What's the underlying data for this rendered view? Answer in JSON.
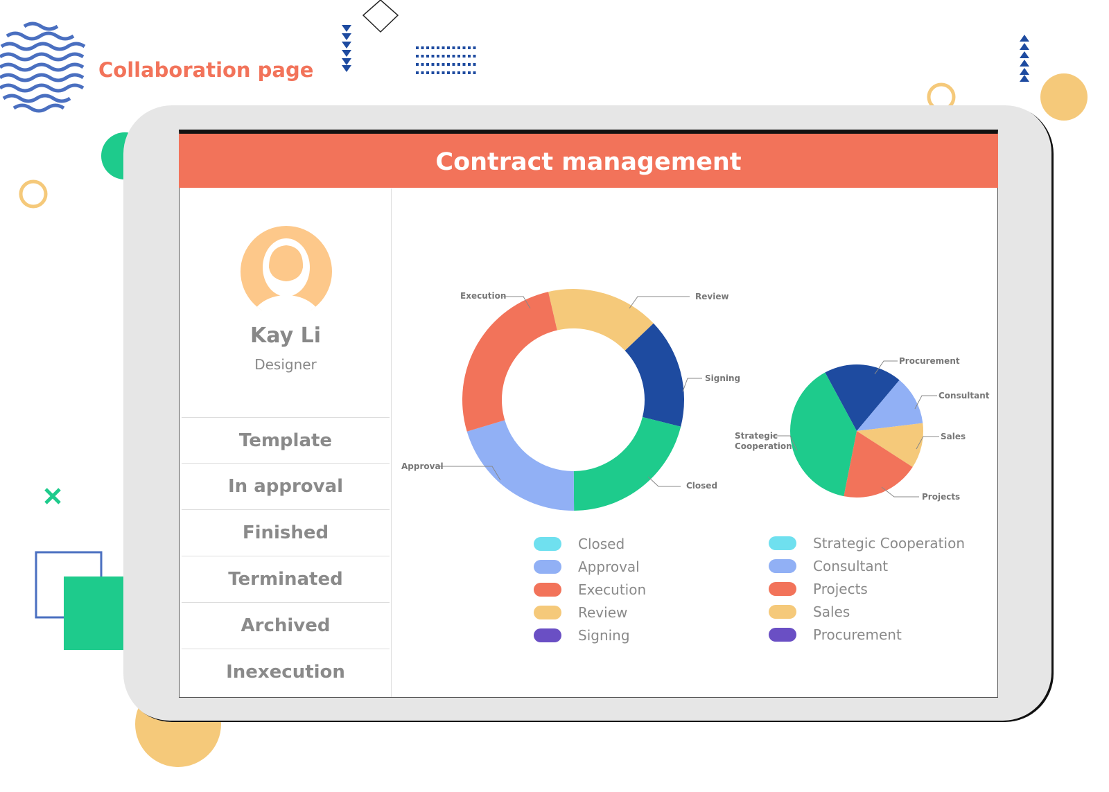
{
  "page_title": "Collaboration page",
  "header": {
    "title": "Contract management"
  },
  "profile": {
    "name": "Kay Li",
    "role": "Designer",
    "avatar_icon": "user-avatar-icon"
  },
  "sidebar": {
    "items": [
      {
        "label": "Template"
      },
      {
        "label": "In approval"
      },
      {
        "label": "Finished"
      },
      {
        "label": "Terminated"
      },
      {
        "label": "Archived"
      },
      {
        "label": "Inexecution"
      }
    ]
  },
  "colors": {
    "accent": "#f2735a",
    "blue": "#1e4ba0",
    "green": "#1ecb8c",
    "yellow": "#f5c97a",
    "lightblue": "#91b0f5"
  },
  "chart_data": [
    {
      "type": "donut",
      "categories": [
        "Review",
        "Signing",
        "Closed",
        "Approval",
        "Execution"
      ],
      "values": [
        16.5,
        16,
        21,
        20.5,
        26
      ],
      "colors": [
        "#f5c97a",
        "#1e4ba0",
        "#1ecb8c",
        "#91b0f5",
        "#f2735a"
      ],
      "legend": [
        {
          "name": "Closed",
          "color": "#6fe0ef"
        },
        {
          "name": "Approval",
          "color": "#91b0f5"
        },
        {
          "name": "Execution",
          "color": "#f2735a"
        },
        {
          "name": "Review",
          "color": "#f5c97a"
        },
        {
          "name": "Signing",
          "color": "#6a4fc4"
        }
      ],
      "legend_placement": "bottom"
    },
    {
      "type": "pie",
      "categories": [
        "Procurement",
        "Consultant",
        "Sales",
        "Projects",
        "Strategic Cooperation"
      ],
      "values": [
        19,
        12,
        11,
        19,
        39
      ],
      "colors": [
        "#1e4ba0",
        "#91b0f5",
        "#f5c97a",
        "#f2735a",
        "#1ecb8c"
      ],
      "labels": [
        "Procurement",
        "Consultant",
        "Sales",
        "Projects",
        "Strategic Cooperation"
      ],
      "legend": [
        {
          "name": "Strategic Cooperation",
          "color": "#6fe0ef"
        },
        {
          "name": "Consultant",
          "color": "#91b0f5"
        },
        {
          "name": "Projects",
          "color": "#f2735a"
        },
        {
          "name": "Sales",
          "color": "#f5c97a"
        },
        {
          "name": "Procurement",
          "color": "#6a4fc4"
        }
      ],
      "legend_placement": "bottom"
    }
  ]
}
